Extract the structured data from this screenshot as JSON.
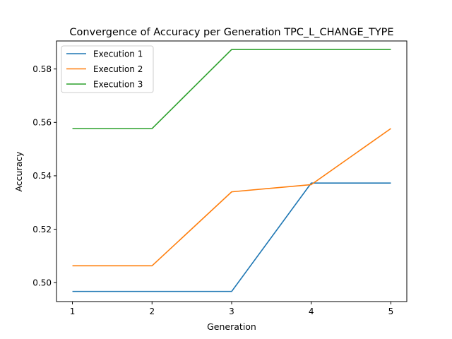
{
  "chart_data": {
    "type": "line",
    "title": "Convergence of Accuracy per Generation TPC_L_CHANGE_TYPE",
    "xlabel": "Generation",
    "ylabel": "Accuracy",
    "x": [
      1,
      2,
      3,
      4,
      5
    ],
    "xticks": [
      "1",
      "2",
      "3",
      "4",
      "5"
    ],
    "yticks": [
      "0.50",
      "0.52",
      "0.54",
      "0.56",
      "0.58"
    ],
    "xlim": [
      0.8,
      5.2
    ],
    "ylim": [
      0.4929,
      0.5905
    ],
    "grid": false,
    "legend_position": "top-left",
    "series": [
      {
        "name": "Execution 1",
        "color": "#1f77b4",
        "values": [
          0.4967,
          0.4967,
          0.4967,
          0.5373,
          0.5373
        ]
      },
      {
        "name": "Execution 2",
        "color": "#ff7f0e",
        "values": [
          0.5063,
          0.5063,
          0.534,
          0.5367,
          0.5577
        ]
      },
      {
        "name": "Execution 3",
        "color": "#2ca02c",
        "values": [
          0.5577,
          0.5577,
          0.5873,
          0.5873,
          0.5873
        ]
      }
    ]
  }
}
